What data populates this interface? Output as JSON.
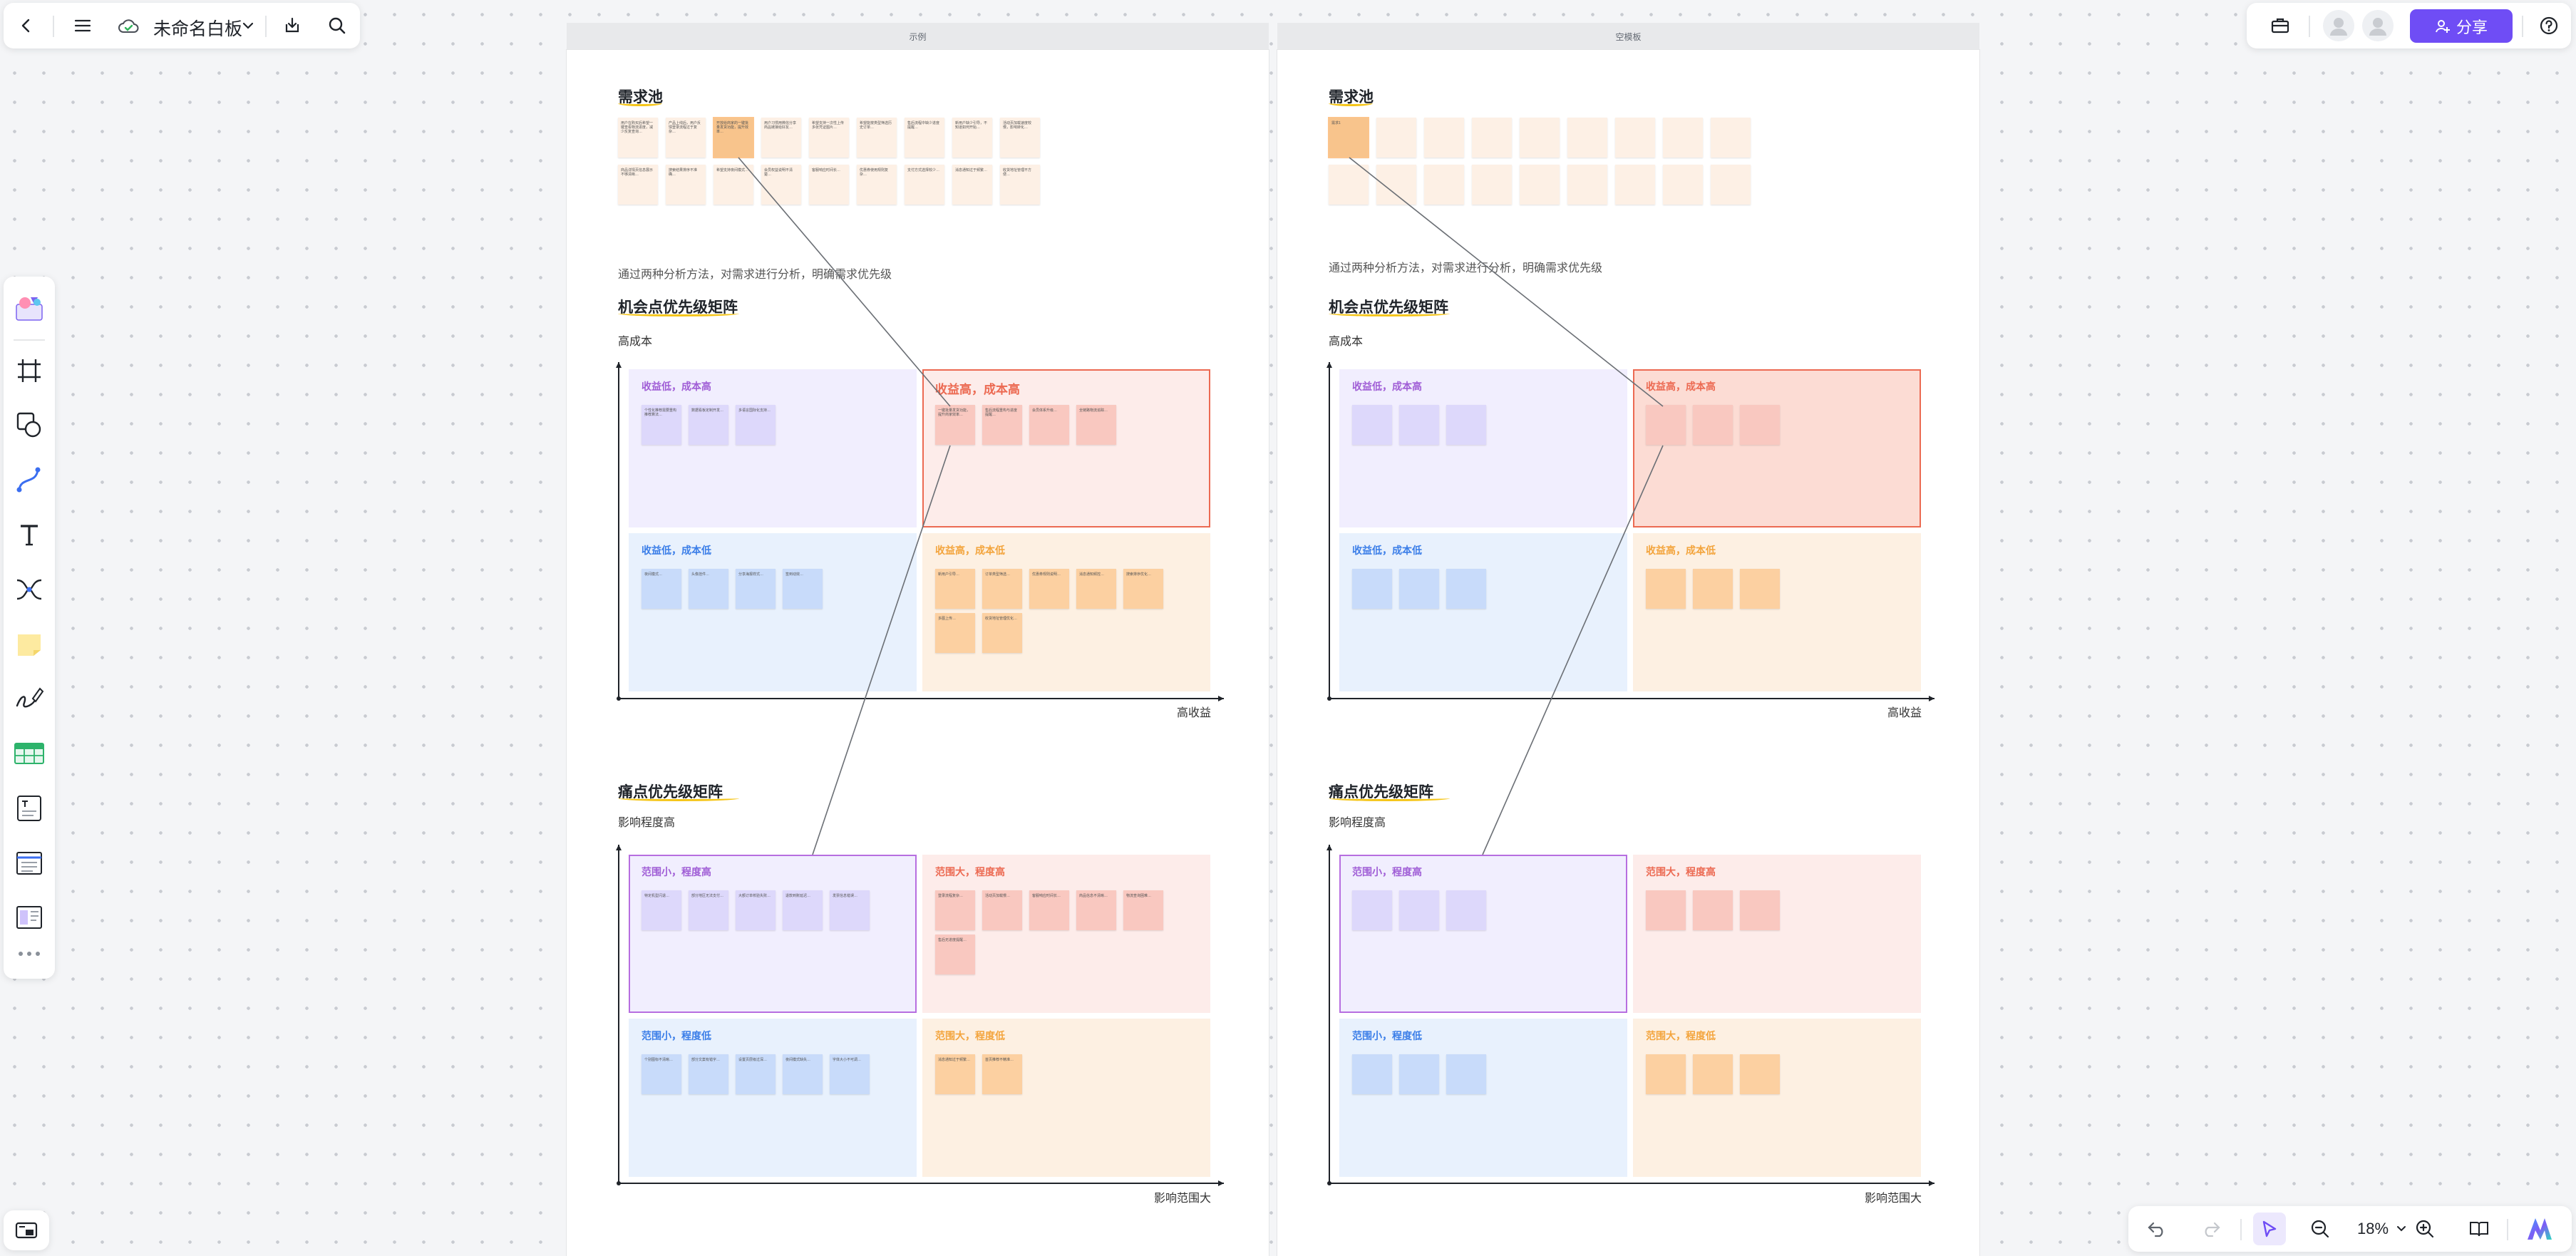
{
  "toolbar": {
    "board_title": "未命名白板",
    "share_label": "分享"
  },
  "zoom": {
    "value": "18%"
  },
  "frames": [
    {
      "id": "example",
      "label": "示例",
      "pool_title": "需求池",
      "desc": "通过两种分析方法，对需求进行分析，明确需求优先级",
      "opp_title": "机会点优先级矩阵",
      "opp_y_label": "高成本",
      "opp_x_label": "高收益",
      "pain_title": "痛点优先级矩阵",
      "pain_y_label": "影响程度高",
      "pain_x_label": "影响范围大",
      "pool_notes": [
        "用户在购买后希望一键查看物流进度，减少反复查询…",
        "产品上线后，用户反馈登录流程过于复杂…",
        "开放给商家的一键批量发货功能，提升效率…",
        "用户习惯用微信分享商品链接给好友…",
        "希望支持一次性上传多张凭证图片…",
        "希望能按类型筛选历史订单…",
        "售后流程中缺少进度提醒…",
        "新用户缺少引导，不知道如何开始…",
        "活动页加载速度较慢，影响转化…",
        "商品详情页信息展示不够清晰…",
        "搜索结果排序不准确…",
        "希望支持夜间模式…",
        "会员权益说明不清楚…",
        "客服响应时间长…",
        "优惠券使用规则复杂…",
        "支付方式选择较少…",
        "消息通知过于频繁…",
        "收货地址管理不方便…"
      ],
      "opp_quadrants": [
        {
          "title": "收益低，成本高",
          "notes": [
            "个性化推荐需要重构推荐算法…",
            "数据看板定制开发…",
            "多语言国际化支持…"
          ]
        },
        {
          "title": "收益高，成本高",
          "notes": [
            "一键批量发货功能，提升商家效率…",
            "售后流程重构与进度提醒…",
            "会员体系升级…",
            "全链路物流追踪…"
          ]
        },
        {
          "title": "收益低，成本低",
          "notes": [
            "夜间模式…",
            "头像挂件…",
            "分享海报样式…",
            "签到动效…"
          ]
        },
        {
          "title": "收益高，成本低",
          "notes": [
            "新用户引导…",
            "订单类型筛选…",
            "优惠券规则说明…",
            "消息通知频控…",
            "搜索排序优化…",
            "多图上传…",
            "收货地址管理优化…"
          ]
        }
      ],
      "pain_quadrants": [
        {
          "title": "范围小，程度高",
          "notes": [
            "特定机型闪退…",
            "部分地区无法支付…",
            "大额订单校验失败…",
            "退款到账延迟…",
            "发票信息错误…"
          ]
        },
        {
          "title": "范围大，程度高",
          "notes": [
            "登录流程复杂…",
            "活动页加载慢…",
            "客服响应时间长…",
            "商品信息不清晰…",
            "物流查询困难…",
            "售后无进度提醒…"
          ]
        },
        {
          "title": "范围小，程度低",
          "notes": [
            "个别图标不清晰…",
            "部分文案有错字…",
            "设置页层级过深…",
            "夜间模式缺失…",
            "字体大小不可调…"
          ]
        },
        {
          "title": "范围大，程度低",
          "notes": [
            "消息通知过于频繁…",
            "首页推荐不精准…"
          ]
        }
      ]
    },
    {
      "id": "blank",
      "label": "空模板",
      "pool_title": "需求池",
      "desc": "通过两种分析方法，对需求进行分析，明确需求优先级",
      "opp_title": "机会点优先级矩阵",
      "opp_y_label": "高成本",
      "opp_x_label": "高收益",
      "pain_title": "痛点优先级矩阵",
      "pain_y_label": "影响程度高",
      "pain_x_label": "影响范围大",
      "pool_first_note": "需求1",
      "opp_quadrants": [
        {
          "title": "收益低，成本高"
        },
        {
          "title": "收益高，成本高"
        },
        {
          "title": "收益低，成本低"
        },
        {
          "title": "收益高，成本低"
        }
      ],
      "pain_quadrants": [
        {
          "title": "范围小，程度高"
        },
        {
          "title": "范围大，程度高"
        },
        {
          "title": "范围小，程度低"
        },
        {
          "title": "范围大，程度低"
        }
      ]
    }
  ],
  "colors": {
    "accent": "#6f4df5",
    "purple_bg": "#f1eefe",
    "purple_note": "#ddd8fb",
    "purple_title": "#a05ed6",
    "red_bg": "#fdecea",
    "red_note": "#f9c8c0",
    "red_title": "#ec6a52",
    "blue_bg": "#e8f1fd",
    "blue_note": "#c8dbfa",
    "blue_title": "#3b7ee8",
    "orange_bg": "#fdf0e2",
    "orange_note": "#fcd0a1",
    "orange_title": "#f3a43c",
    "pool_note": "#fdf0e5",
    "pool_note_selected": "#f8c48c"
  }
}
